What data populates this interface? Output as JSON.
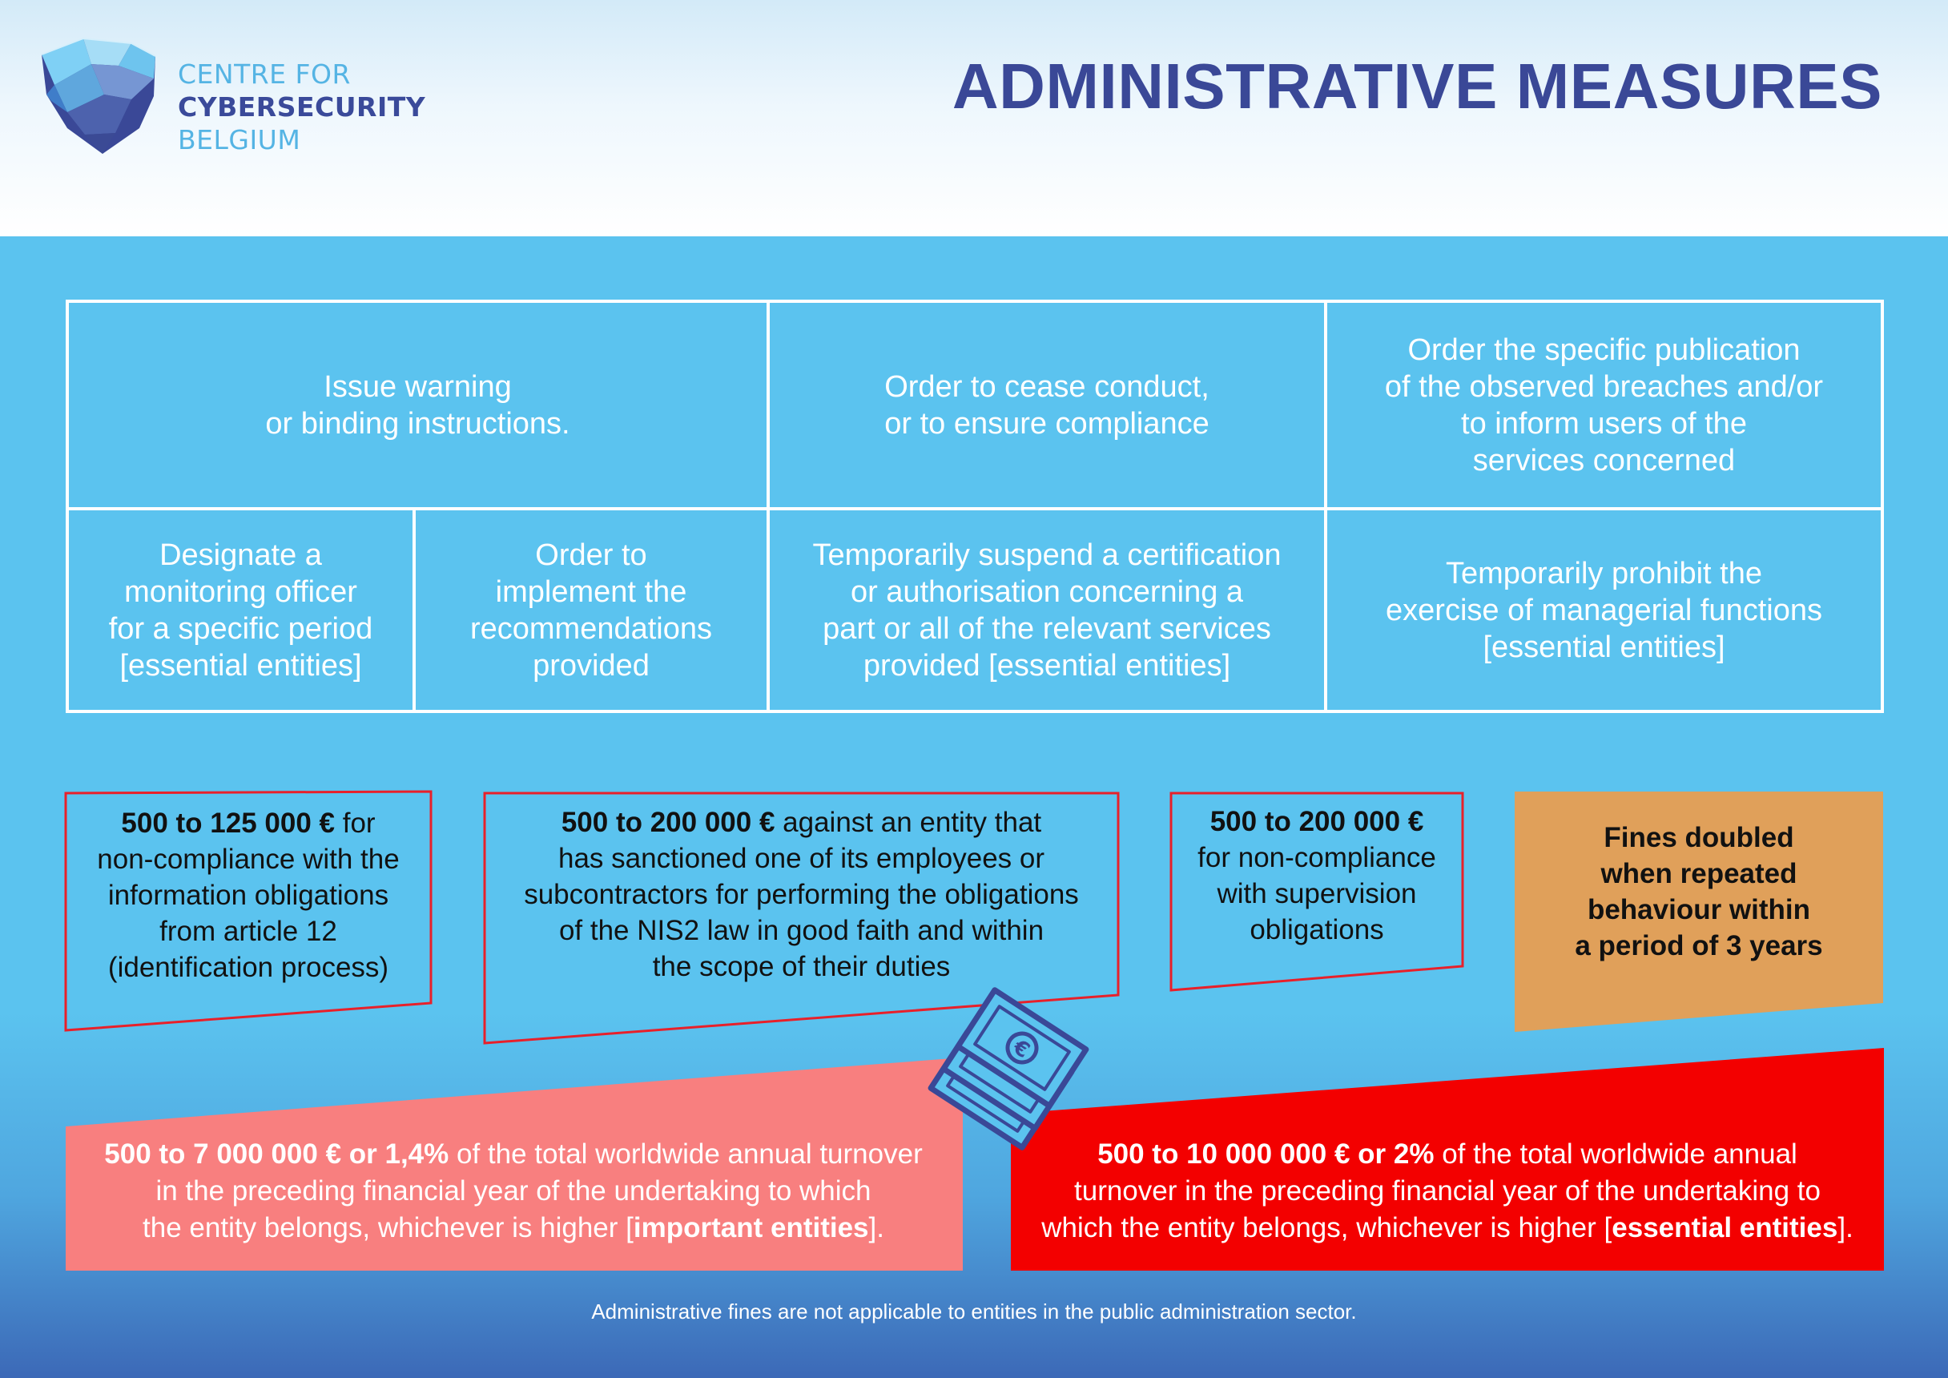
{
  "header": {
    "logo_line1": "CENTRE FOR",
    "logo_line2": "CYBERSECURITY",
    "logo_line3": "BELGIUM",
    "title": "ADMINISTRATIVE MEASURES"
  },
  "measures": {
    "warning": [
      "Issue warning",
      "or binding instructions."
    ],
    "cease": [
      "Order to cease conduct,",
      "or to ensure compliance"
    ],
    "publication": [
      "Order the specific publication",
      "of the observed breaches and/or",
      "to inform users of the",
      "services concerned"
    ],
    "monitoring": [
      "Designate a",
      "monitoring officer",
      "for a specific period",
      "[essential entities]"
    ],
    "implement": [
      "Order to",
      "implement the",
      "recommendations",
      "provided"
    ],
    "suspend": [
      "Temporarily suspend a certification",
      "or authorisation concerning a",
      "part or all of the relevant services",
      "provided [essential entities]"
    ],
    "prohibit": [
      "Temporarily prohibit the",
      "exercise of managerial functions",
      "[essential entities]"
    ]
  },
  "fines": {
    "f1_amount": "500 to 125 000 €",
    "f1_rest1": " for",
    "f1_lines": [
      "non-compliance with the",
      "information obligations",
      "from article 12",
      "(identification process)"
    ],
    "f2_amount": "500 to 200 000 €",
    "f2_rest1": " against an entity that",
    "f2_lines": [
      "has sanctioned one of its employees or",
      "subcontractors for performing the obligations",
      "of the NIS2 law in good faith and within",
      "the scope of their duties"
    ],
    "f3_amount": "500 to 200 000 €",
    "f3_lines": [
      "for non-compliance",
      "with supervision",
      "obligations"
    ],
    "f4_lines": [
      "Fines doubled",
      "when repeated",
      "behaviour within",
      "a period of 3 years"
    ]
  },
  "big_fines": {
    "important_amount": "500 to 7 000 000 € or 1,4%",
    "important_rest1": " of the total worldwide annual turnover",
    "important_line2": "in the preceding financial year of the undertaking to which",
    "important_line3_pre": "the entity belongs, whichever is higher [",
    "important_line3_bold": "important entities",
    "important_line3_post": "].",
    "essential_amount": "500 to 10 000 000 € or 2%",
    "essential_rest1": " of the total worldwide annual",
    "essential_line2": "turnover in the preceding financial year of the undertaking to",
    "essential_line3_pre": "which the entity belongs, whichever is higher [",
    "essential_line3_bold": "essential entities",
    "essential_line3_post": "]."
  },
  "footnote": "Administrative fines are not applicable to entities in the public administration sector.",
  "colors": {
    "background": "#5bc3ef",
    "title": "#3a4897",
    "fine_border": "#e8202a",
    "doubled": "#e0a05a",
    "important": "#f87f7f",
    "essential": "#f30000"
  },
  "icons": [
    "shield-logo-icon",
    "banknotes-euro-icon"
  ]
}
